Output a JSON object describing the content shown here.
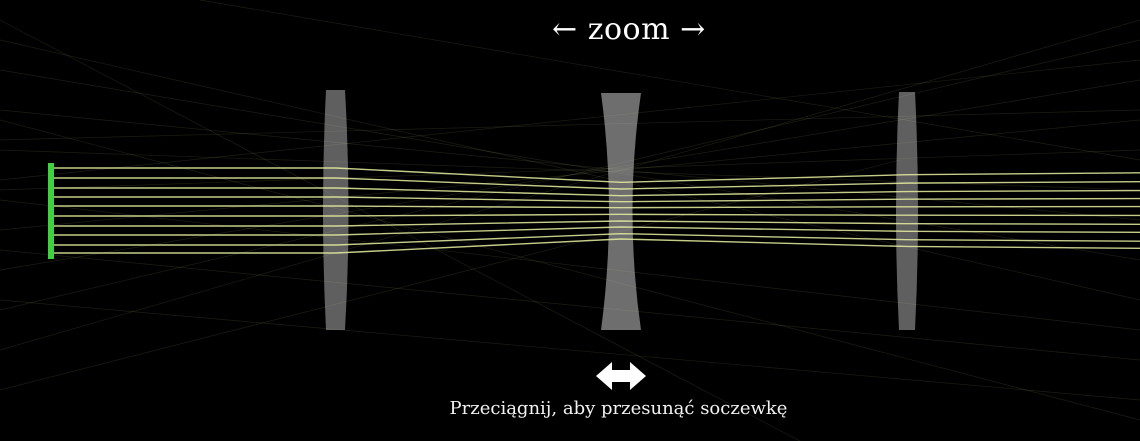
{
  "zoom_label": {
    "left_arrow": "←",
    "text": "zoom",
    "right_arrow": "→"
  },
  "hint_text": "Przeciągnij, aby przesunąć soczewkę",
  "drag_icon": "double-arrow-icon",
  "colors": {
    "background": "#000000",
    "sensor": "#3fd13f",
    "ray": "#e8f0a0",
    "lens": "#bdbdbd",
    "text": "#ffffff"
  }
}
